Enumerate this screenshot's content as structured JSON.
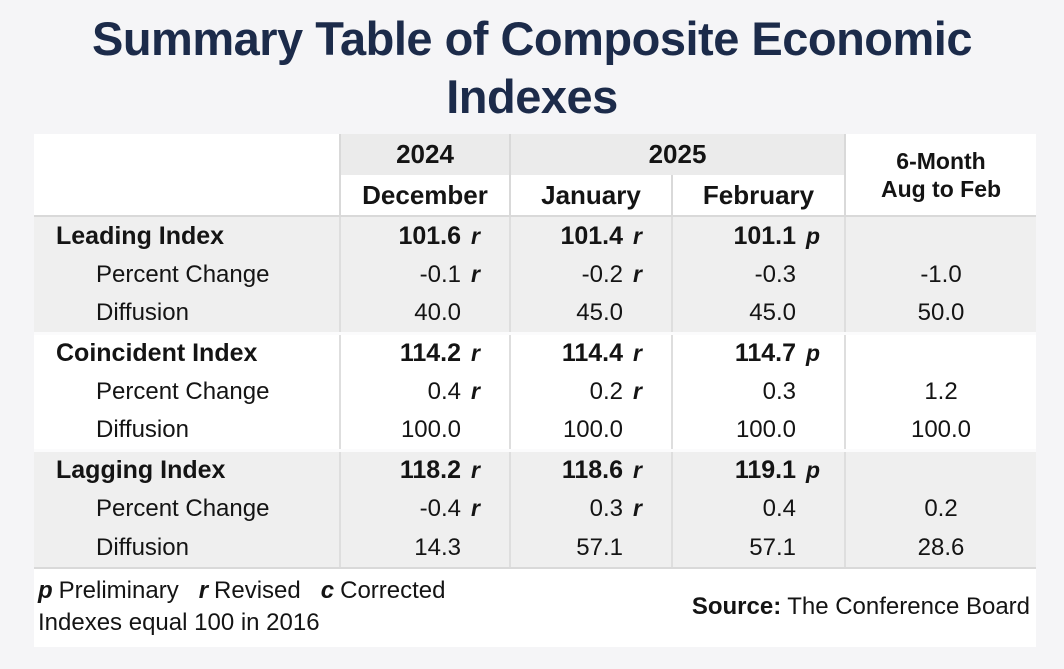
{
  "title": {
    "line1": "Summary Table of Composite Economic",
    "line2": "Indexes"
  },
  "theme": {
    "page_bg": "#f5f5f7",
    "title_color": "#1c2b4a",
    "header_band_bg": "#ebebeb",
    "shaded_band_bg": "#efefef",
    "grid_border": "#d9d9d9",
    "col_line": "#dedede",
    "text_color": "#141414"
  },
  "chart_data": {
    "type": "table",
    "title": "Summary Table of Composite Economic Indexes",
    "header": {
      "year_left": "2024",
      "year_right": "2025",
      "months": [
        "December",
        "January",
        "February"
      ],
      "summary_col_line1": "6-Month",
      "summary_col_line2": "Aug to Feb"
    },
    "blocks": [
      {
        "shaded": true,
        "rows": [
          {
            "type": "index",
            "label": "Leading Index",
            "values": [
              {
                "num": "101.6",
                "suffix": "r"
              },
              {
                "num": "101.4",
                "suffix": "r"
              },
              {
                "num": "101.1",
                "suffix": "p"
              }
            ],
            "six_month": ""
          },
          {
            "type": "sub",
            "label": "Percent Change",
            "values": [
              {
                "num": "-0.1",
                "suffix": "r"
              },
              {
                "num": "-0.2",
                "suffix": "r"
              },
              {
                "num": "-0.3",
                "suffix": ""
              }
            ],
            "six_month": "-1.0"
          },
          {
            "type": "sub",
            "label": "Diffusion",
            "values": [
              {
                "num": "40.0",
                "suffix": ""
              },
              {
                "num": "45.0",
                "suffix": ""
              },
              {
                "num": "45.0",
                "suffix": ""
              }
            ],
            "six_month": "50.0"
          }
        ]
      },
      {
        "shaded": false,
        "rows": [
          {
            "type": "index",
            "label": "Coincident Index",
            "values": [
              {
                "num": "114.2",
                "suffix": "r"
              },
              {
                "num": "114.4",
                "suffix": "r"
              },
              {
                "num": "114.7",
                "suffix": "p"
              }
            ],
            "six_month": ""
          },
          {
            "type": "sub",
            "label": "Percent Change",
            "values": [
              {
                "num": "0.4",
                "suffix": "r"
              },
              {
                "num": "0.2",
                "suffix": "r"
              },
              {
                "num": "0.3",
                "suffix": ""
              }
            ],
            "six_month": "1.2"
          },
          {
            "type": "sub",
            "label": "Diffusion",
            "values": [
              {
                "num": "100.0",
                "suffix": ""
              },
              {
                "num": "100.0",
                "suffix": ""
              },
              {
                "num": "100.0",
                "suffix": ""
              }
            ],
            "six_month": "100.0"
          }
        ]
      },
      {
        "shaded": true,
        "rows": [
          {
            "type": "index",
            "label": "Lagging Index",
            "values": [
              {
                "num": "118.2",
                "suffix": "r"
              },
              {
                "num": "118.6",
                "suffix": "r"
              },
              {
                "num": "119.1",
                "suffix": "p"
              }
            ],
            "six_month": ""
          },
          {
            "type": "sub",
            "label": "Percent Change",
            "values": [
              {
                "num": "-0.4",
                "suffix": "r"
              },
              {
                "num": "0.3",
                "suffix": "r"
              },
              {
                "num": "0.4",
                "suffix": ""
              }
            ],
            "six_month": "0.2"
          },
          {
            "type": "sub",
            "label": "Diffusion",
            "values": [
              {
                "num": "14.3",
                "suffix": ""
              },
              {
                "num": "57.1",
                "suffix": ""
              },
              {
                "num": "57.1",
                "suffix": ""
              }
            ],
            "six_month": "28.6"
          }
        ]
      }
    ],
    "footnotes": {
      "symbols": [
        {
          "sym": "p",
          "meaning": "Preliminary"
        },
        {
          "sym": "r",
          "meaning": "Revised"
        },
        {
          "sym": "c",
          "meaning": "Corrected"
        }
      ],
      "base_note": "Indexes equal 100 in 2016",
      "source_label": "Source:",
      "source_text": "The Conference Board"
    }
  }
}
